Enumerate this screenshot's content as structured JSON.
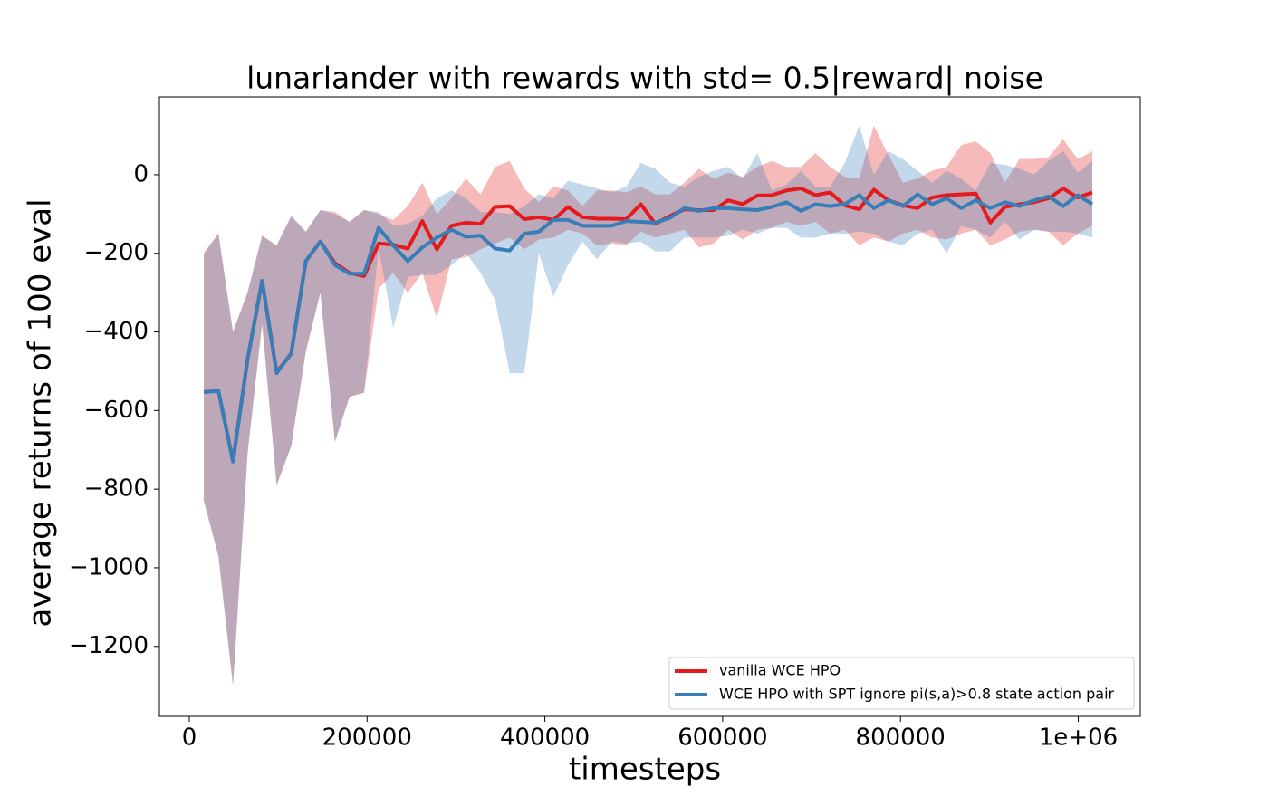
{
  "chart_data": {
    "type": "line",
    "title": "lunarlander with rewards with std= 0.5|reward| noise",
    "x_label": "timesteps",
    "y_label": "average returns of 100 eval",
    "xlim": [
      -33600,
      1069800
    ],
    "ylim": [
      -1378,
      198
    ],
    "xticks": [
      0,
      200000,
      400000,
      600000,
      800000,
      {
        "value": 1000000,
        "label": "1e+06"
      }
    ],
    "yticks": [
      {
        "value": -1200,
        "label": "−1200"
      },
      {
        "value": -1000,
        "label": "−1000"
      },
      {
        "value": -800,
        "label": "−800"
      },
      {
        "value": -600,
        "label": "−600"
      },
      {
        "value": -400,
        "label": "−400"
      },
      {
        "value": -200,
        "label": "−200"
      },
      0
    ],
    "grid": false,
    "legend": "lower right",
    "x": [
      16384,
      32768,
      49152,
      65536,
      81920,
      98304,
      114688,
      131072,
      147456,
      163840,
      180224,
      196608,
      212992,
      229376,
      245760,
      262144,
      278528,
      294912,
      311296,
      327680,
      344064,
      360448,
      376832,
      393216,
      409600,
      425984,
      442368,
      458752,
      475136,
      491520,
      507904,
      524288,
      540672,
      557056,
      573440,
      589824,
      606208,
      622592,
      638976,
      655360,
      671744,
      688128,
      704512,
      720896,
      737280,
      753664,
      770048,
      786432,
      802816,
      819200,
      835584,
      851968,
      868352,
      884736,
      901120,
      917504,
      933888,
      950272,
      966656,
      983040,
      999424,
      1015808
    ],
    "series": [
      {
        "name": "vanilla WCE HPO",
        "color": "#e41a1c",
        "values": [
          -553,
          -550,
          -728,
          -470,
          -270,
          -503,
          -455,
          -220,
          -170,
          -225,
          -250,
          -258,
          -175,
          -178,
          -188,
          -118,
          -190,
          -130,
          -122,
          -125,
          -82,
          -80,
          -113,
          -108,
          -115,
          -82,
          -108,
          -112,
          -112,
          -113,
          -75,
          -125,
          -105,
          -88,
          -90,
          -90,
          -65,
          -75,
          -53,
          -52,
          -40,
          -35,
          -52,
          -45,
          -78,
          -88,
          -38,
          -65,
          -78,
          -85,
          -58,
          -52,
          -50,
          -48,
          -122,
          -82,
          -75,
          -70,
          -60,
          -35,
          -58,
          -45
        ],
        "upper": [
          -200,
          -150,
          -400,
          -300,
          -155,
          -180,
          -105,
          -145,
          -90,
          -95,
          -120,
          -90,
          -100,
          -115,
          -80,
          -20,
          -100,
          -60,
          -10,
          -50,
          20,
          35,
          -35,
          -70,
          -30,
          -40,
          -80,
          -40,
          -40,
          -45,
          -30,
          -50,
          -50,
          -20,
          15,
          -10,
          5,
          -5,
          20,
          35,
          20,
          20,
          55,
          20,
          -5,
          -10,
          125,
          50,
          -20,
          -10,
          10,
          20,
          75,
          85,
          55,
          -20,
          40,
          40,
          45,
          90,
          40,
          60
        ],
        "lower": [
          -830,
          -970,
          -1300,
          -710,
          -380,
          -790,
          -690,
          -450,
          -300,
          -680,
          -565,
          -555,
          -290,
          -250,
          -300,
          -250,
          -365,
          -215,
          -210,
          -190,
          -175,
          -160,
          -190,
          -165,
          -160,
          -140,
          -150,
          -180,
          -175,
          -180,
          -145,
          -160,
          -150,
          -140,
          -185,
          -175,
          -140,
          -165,
          -140,
          -135,
          -120,
          -130,
          -120,
          -150,
          -140,
          -180,
          -160,
          -170,
          -150,
          -140,
          -160,
          -165,
          -150,
          -140,
          -180,
          -165,
          -145,
          -140,
          -145,
          -180,
          -150,
          -130
        ]
      },
      {
        "name": "WCE HPO with SPT ignore pi(s,a)>0.8 state action pair",
        "color": "#377eb8",
        "values": [
          -553,
          -550,
          -730,
          -470,
          -270,
          -505,
          -455,
          -220,
          -170,
          -230,
          -252,
          -252,
          -135,
          -180,
          -220,
          -185,
          -160,
          -140,
          -158,
          -155,
          -188,
          -193,
          -150,
          -145,
          -115,
          -115,
          -130,
          -130,
          -130,
          -118,
          -120,
          -122,
          -110,
          -85,
          -92,
          -85,
          -85,
          -88,
          -90,
          -82,
          -70,
          -92,
          -75,
          -80,
          -75,
          -52,
          -85,
          -65,
          -80,
          -50,
          -75,
          -60,
          -85,
          -65,
          -85,
          -70,
          -80,
          -65,
          -55,
          -80,
          -52,
          -75
        ],
        "upper": [
          -200,
          -150,
          -400,
          -300,
          -155,
          -180,
          -105,
          -145,
          -90,
          -100,
          -120,
          -90,
          -95,
          -130,
          -125,
          -105,
          -60,
          -40,
          -60,
          -95,
          -95,
          -100,
          -80,
          -50,
          -60,
          -15,
          -25,
          -35,
          -45,
          -30,
          30,
          15,
          -20,
          -30,
          -5,
          10,
          20,
          -10,
          55,
          -40,
          -25,
          10,
          -30,
          -30,
          30,
          125,
          0,
          60,
          40,
          10,
          -20,
          10,
          -10,
          -40,
          30,
          25,
          15,
          0,
          35,
          60,
          5,
          35
        ],
        "lower": [
          -830,
          -970,
          -1300,
          -710,
          -380,
          -790,
          -690,
          -450,
          -300,
          -680,
          -565,
          -555,
          -185,
          -390,
          -260,
          -255,
          -255,
          -230,
          -200,
          -250,
          -320,
          -505,
          -505,
          -200,
          -310,
          -230,
          -170,
          -215,
          -170,
          -175,
          -170,
          -195,
          -195,
          -160,
          -160,
          -160,
          -155,
          -140,
          -150,
          -135,
          -135,
          -160,
          -160,
          -150,
          -150,
          -145,
          -150,
          -170,
          -180,
          -150,
          -140,
          -200,
          -130,
          -140,
          -160,
          -120,
          -165,
          -140,
          -145,
          -145,
          -150,
          -160
        ]
      }
    ]
  }
}
